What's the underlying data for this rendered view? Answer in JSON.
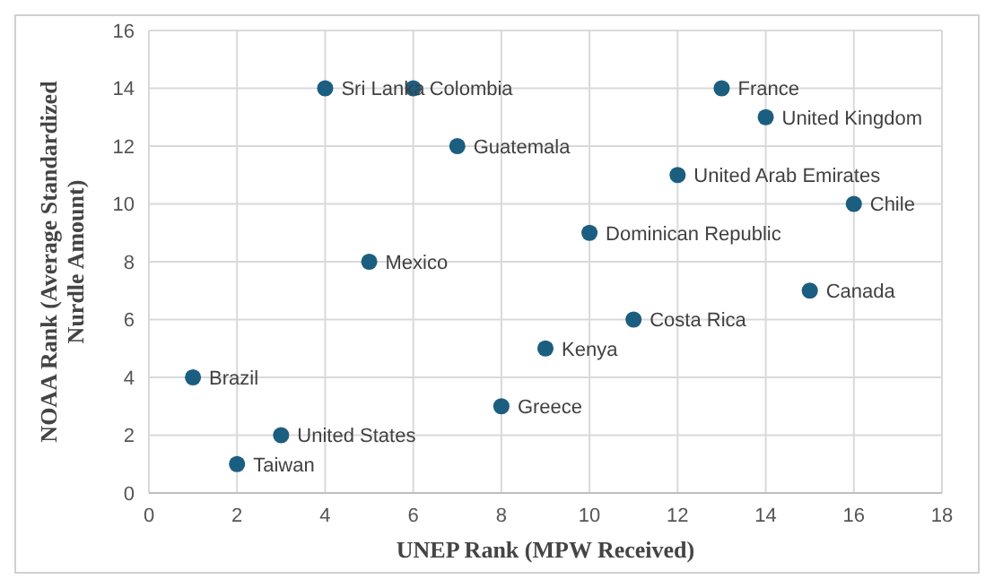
{
  "chart_data": {
    "type": "scatter",
    "xlabel": "UNEP Rank (MPW Received)",
    "ylabel": "NOAA Rank (Average Standardized Nurdle Amount)",
    "x": [
      4,
      6,
      7,
      13,
      14,
      12,
      16,
      10,
      5,
      15,
      11,
      9,
      1,
      8,
      3,
      2
    ],
    "values": [
      14,
      14,
      12,
      14,
      13,
      11,
      10,
      9,
      8,
      7,
      6,
      5,
      4,
      3,
      2,
      1
    ],
    "color": "#1b5e80",
    "marker": "circle",
    "grid": true,
    "legend": false,
    "xlim": [
      0,
      18
    ],
    "xticks": [
      0,
      2,
      4,
      6,
      8,
      10,
      12,
      14,
      16,
      18
    ],
    "ylim": [
      0,
      16
    ],
    "yticks": [
      0,
      2,
      4,
      6,
      8,
      10,
      12,
      14,
      16
    ],
    "annotations": [
      {
        "text": "Sri Lanka",
        "x": 4,
        "y": 14
      },
      {
        "text": "Colombia",
        "x": 6,
        "y": 14
      },
      {
        "text": "Guatemala",
        "x": 7,
        "y": 12
      },
      {
        "text": "France",
        "x": 13,
        "y": 14
      },
      {
        "text": "United Kingdom",
        "x": 14,
        "y": 13
      },
      {
        "text": "United Arab Emirates",
        "x": 12,
        "y": 11
      },
      {
        "text": "Chile",
        "x": 16,
        "y": 10
      },
      {
        "text": "Dominican Republic",
        "x": 10,
        "y": 9
      },
      {
        "text": "Mexico",
        "x": 5,
        "y": 8
      },
      {
        "text": "Canada",
        "x": 15,
        "y": 7
      },
      {
        "text": "Costa Rica",
        "x": 11,
        "y": 6
      },
      {
        "text": "Kenya",
        "x": 9,
        "y": 5
      },
      {
        "text": "Brazil",
        "x": 1,
        "y": 4
      },
      {
        "text": "Greece",
        "x": 8,
        "y": 3
      },
      {
        "text": "United States",
        "x": 3,
        "y": 2
      },
      {
        "text": "Taiwan",
        "x": 2,
        "y": 1
      }
    ]
  }
}
